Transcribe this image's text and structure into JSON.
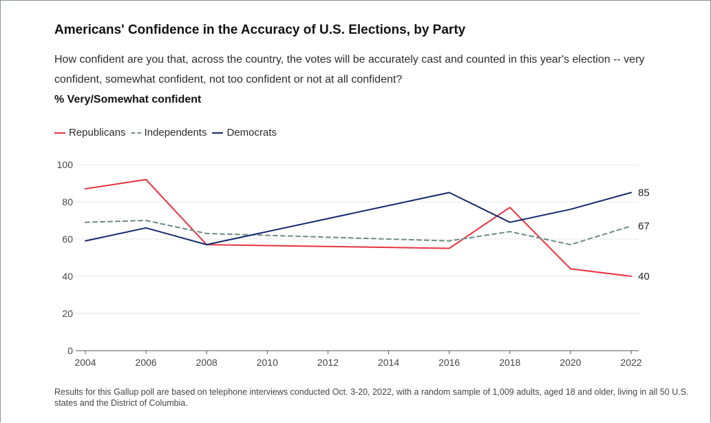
{
  "title": "Americans' Confidence in the Accuracy of U.S. Elections, by Party",
  "question": "How confident are you that, across the country, the votes will be accurately cast and counted in this year's election -- very confident, somewhat confident, not too confident or not at all confident?",
  "subtitle": "% Very/Somewhat confident",
  "footnote": "Results for this Gallup poll are based on telephone interviews conducted Oct. 3-20, 2022, with a random sample of 1,009 adults, aged 18 and older, living in all 50 U.S. states and the District of Columbia.",
  "colors": {
    "republicans": "#e8313f",
    "independents": "#6b8a80",
    "democrats": "#132a6b",
    "grid": "#e2e4e8",
    "axis": "#555555",
    "tick_text": "#444444"
  },
  "chart_data": {
    "type": "line",
    "title": "Americans' Confidence in the Accuracy of U.S. Elections, by Party",
    "subtitle": "% Very/Somewhat confident",
    "xlabel": "",
    "ylabel": "",
    "xlim": [
      2004,
      2022
    ],
    "ylim": [
      0,
      100
    ],
    "x_ticks": [
      2004,
      2006,
      2008,
      2010,
      2012,
      2014,
      2016,
      2018,
      2020,
      2022
    ],
    "y_ticks": [
      0,
      20,
      40,
      60,
      80,
      100
    ],
    "grid": "horizontal",
    "legend_position": "top-left",
    "series": [
      {
        "name": "Republicans",
        "style": "solid",
        "x": [
          2004,
          2006,
          2008,
          2016,
          2018,
          2020,
          2022
        ],
        "y": [
          87,
          92,
          57,
          55,
          77,
          44,
          40
        ],
        "end_label": "40"
      },
      {
        "name": "Independents",
        "style": "dashed",
        "x": [
          2004,
          2006,
          2008,
          2016,
          2018,
          2020,
          2022
        ],
        "y": [
          69,
          70,
          63,
          59,
          64,
          57,
          67
        ],
        "end_label": "67"
      },
      {
        "name": "Democrats",
        "style": "solid",
        "x": [
          2004,
          2006,
          2008,
          2016,
          2018,
          2020,
          2022
        ],
        "y": [
          59,
          66,
          57,
          85,
          69,
          76,
          85
        ],
        "end_label": "85"
      }
    ]
  }
}
